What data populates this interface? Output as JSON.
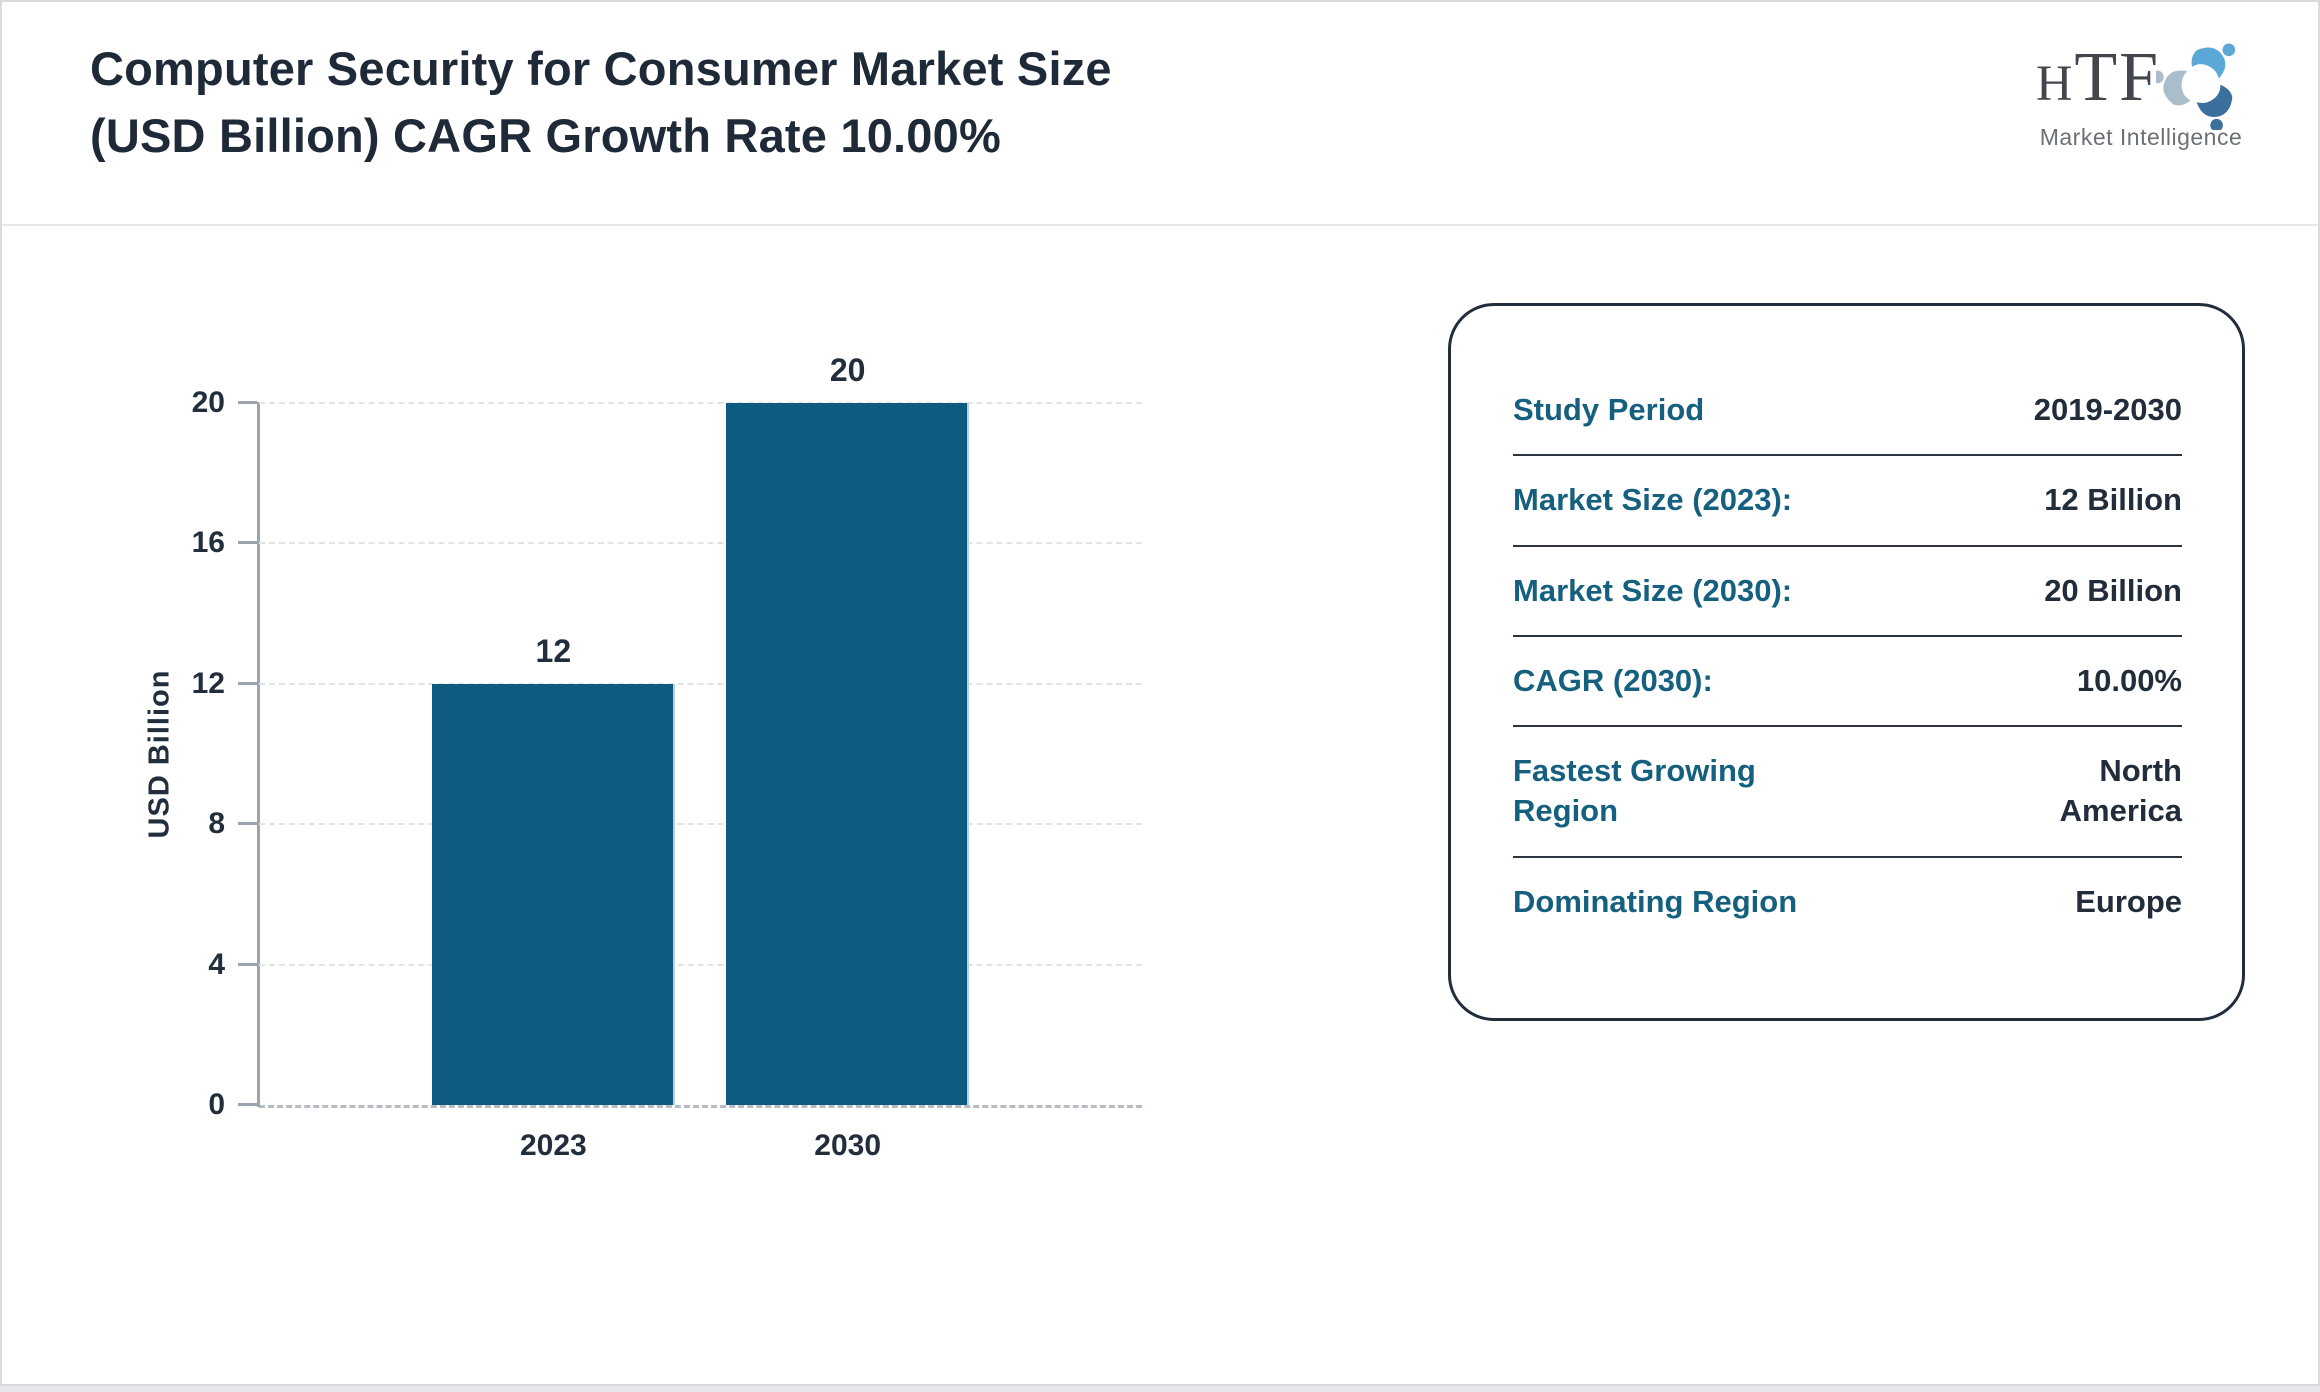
{
  "header": {
    "title_line1": "Computer Security for Consumer Market Size",
    "title_line2": "(USD Billion) CAGR Growth Rate 10.00%"
  },
  "logo": {
    "text": "HTF",
    "subtext": "Market Intelligence",
    "icon": "three-figures-swirl-icon",
    "colors": {
      "light_blue": "#5aa7d8",
      "gray_blue": "#a9bdcb",
      "dark_blue": "#3a6f9e",
      "text_gray": "#43474d"
    }
  },
  "chart_data": {
    "type": "bar",
    "title": "",
    "categories": [
      "2023",
      "2030"
    ],
    "values": [
      12,
      20
    ],
    "series": [
      {
        "name": "Market Size",
        "values": [
          12,
          20
        ]
      }
    ],
    "xlabel": "",
    "ylabel": "USD Billion",
    "ylim": [
      0,
      20
    ],
    "yticks": [
      0,
      4,
      8,
      12,
      16,
      20
    ],
    "bar_color": "#0d5b80",
    "grid": true,
    "gridline_style": "dashed",
    "legend": "none",
    "value_labels_shown": true
  },
  "info_panel": {
    "rows": [
      {
        "label": "Study Period",
        "value": "2019-2030"
      },
      {
        "label": "Market Size (2023):",
        "value": "12 Billion"
      },
      {
        "label": "Market Size (2030):",
        "value": "20 Billion"
      },
      {
        "label": "CAGR (2030):",
        "value": "10.00%"
      },
      {
        "label": "Fastest Growing Region",
        "value": "North America"
      },
      {
        "label": "Dominating Region",
        "value": "Europe"
      }
    ],
    "label_color": "#16607f",
    "value_color": "#222d3b"
  }
}
